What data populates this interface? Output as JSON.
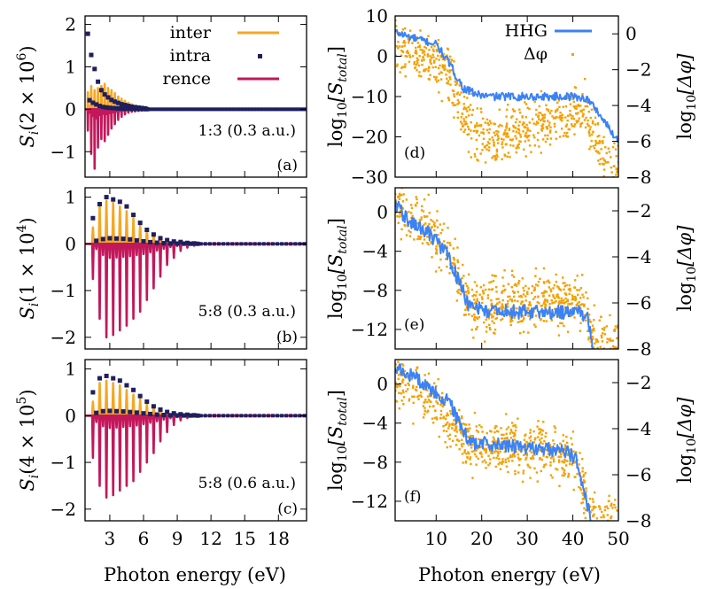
{
  "chart_data": {
    "type": "line",
    "xlabel": "Photon energy (eV)",
    "colors": {
      "inter": "#f5a623",
      "intra": "#1f1f5e",
      "rence": "#c2185b",
      "HHG": "#3b82f6",
      "dphi": "#f5a000"
    },
    "legend_left": [
      "inter",
      "intra",
      "rence"
    ],
    "legend_right": [
      "HHG",
      "Δφ"
    ],
    "left_panels": [
      {
        "panel_label": "(a)",
        "ylabel_main": "S",
        "ylabel_sub": "i",
        "ylabel_scale": "(2 × 10",
        "ylabel_exp": "6",
        "ylabel_close": ")",
        "annotation": "1:3 (0.3 a.u.)",
        "ylim": [
          -1.6,
          2.2
        ],
        "xlim": [
          0.8,
          20.5
        ],
        "yticks": [
          {
            "v": 2,
            "l": "2"
          },
          {
            "v": 1,
            "l": "1"
          },
          {
            "v": 0,
            "l": "0"
          },
          {
            "v": -1,
            "l": "−1"
          }
        ],
        "peaks": {
          "x": [
            1.05,
            1.35,
            1.65,
            1.95,
            2.25,
            2.55,
            2.85,
            3.15,
            3.45,
            3.75,
            4.05,
            4.35,
            4.65,
            4.95,
            5.25,
            5.55,
            5.85,
            6.15
          ],
          "inter": [
            0.4,
            0.55,
            0.45,
            0.5,
            0.55,
            0.6,
            0.5,
            0.45,
            0.38,
            0.3,
            0.25,
            0.2,
            0.15,
            0.12,
            0.08,
            0.06,
            0.05,
            0.04
          ],
          "intra": [
            1.78,
            1.28,
            0.95,
            0.65,
            0.45,
            0.35,
            0.28,
            0.22,
            0.18,
            0.15,
            0.12,
            0.1,
            0.08,
            0.06,
            0.05,
            0.04,
            0.03,
            0.02
          ],
          "rence": [
            -0.5,
            -1.05,
            -1.4,
            -0.9,
            -0.7,
            -0.75,
            -0.6,
            -0.45,
            -0.35,
            -0.25,
            -0.18,
            -0.12,
            -0.08,
            -0.06,
            -0.05,
            -0.04,
            -0.03,
            -0.02
          ]
        }
      },
      {
        "panel_label": "(b)",
        "ylabel_main": "S",
        "ylabel_sub": "i",
        "ylabel_scale": "(1 × 10",
        "ylabel_exp": "4",
        "ylabel_close": ")",
        "annotation": "5:8 (0.3 a.u.)",
        "ylim": [
          -2.25,
          1.2
        ],
        "xlim": [
          0.8,
          20.5
        ],
        "yticks": [
          {
            "v": 1,
            "l": "1"
          },
          {
            "v": 0,
            "l": "0"
          },
          {
            "v": -1,
            "l": "−1"
          },
          {
            "v": -2,
            "l": "−2"
          }
        ],
        "peaks": {
          "x": [
            1.5,
            2.1,
            2.7,
            3.3,
            3.9,
            4.5,
            5.1,
            5.7,
            6.3,
            6.9,
            7.5,
            8.1,
            8.7,
            9.3,
            9.9,
            10.5
          ],
          "inter": [
            0.35,
            0.8,
            0.92,
            0.88,
            0.8,
            0.7,
            0.55,
            0.42,
            0.32,
            0.22,
            0.15,
            0.1,
            0.07,
            0.05,
            0.03,
            0.02
          ],
          "intra": [
            0.55,
            0.85,
            1.0,
            0.95,
            0.9,
            0.8,
            0.62,
            0.45,
            0.3,
            0.2,
            0.12,
            0.08,
            0.05,
            0.04,
            0.02,
            0.01
          ],
          "rence": [
            -0.75,
            -1.6,
            -2.0,
            -1.95,
            -1.85,
            -1.75,
            -1.6,
            -1.45,
            -1.2,
            -0.95,
            -0.7,
            -0.45,
            -0.3,
            -0.15,
            -0.08,
            -0.04
          ]
        }
      },
      {
        "panel_label": "(c)",
        "ylabel_main": "S",
        "ylabel_sub": "i",
        "ylabel_scale": "(4 × 10",
        "ylabel_exp": "5",
        "ylabel_close": ")",
        "annotation": "5:8 (0.6 a.u.)",
        "ylim": [
          -2.25,
          1.2
        ],
        "xlim": [
          0.8,
          20.5
        ],
        "yticks": [
          {
            "v": 1,
            "l": "1"
          },
          {
            "v": 0,
            "l": "0"
          },
          {
            "v": -1,
            "l": "−1"
          },
          {
            "v": -2,
            "l": "−2"
          }
        ],
        "xticks": [
          {
            "v": 3,
            "l": "3"
          },
          {
            "v": 6,
            "l": "6"
          },
          {
            "v": 9,
            "l": "9"
          },
          {
            "v": 12,
            "l": "12"
          },
          {
            "v": 15,
            "l": "15"
          },
          {
            "v": 18,
            "l": "18"
          }
        ],
        "peaks": {
          "x": [
            1.5,
            2.1,
            2.7,
            3.3,
            3.9,
            4.5,
            5.1,
            5.7,
            6.3,
            6.9,
            7.5,
            8.1,
            8.7,
            9.3,
            9.9,
            10.5
          ],
          "inter": [
            0.3,
            0.7,
            0.75,
            0.7,
            0.65,
            0.55,
            0.45,
            0.35,
            0.25,
            0.18,
            0.12,
            0.08,
            0.05,
            0.03,
            0.02,
            0.01
          ],
          "intra": [
            0.5,
            0.8,
            0.85,
            0.8,
            0.75,
            0.65,
            0.55,
            0.42,
            0.3,
            0.2,
            0.13,
            0.08,
            0.05,
            0.03,
            0.02,
            0.01
          ],
          "rence": [
            -0.9,
            -1.5,
            -1.75,
            -1.7,
            -1.6,
            -1.5,
            -1.4,
            -1.2,
            -1.0,
            -0.8,
            -0.55,
            -0.35,
            -0.2,
            -0.1,
            -0.05,
            -0.02
          ]
        }
      }
    ],
    "right_panels": [
      {
        "panel_label": "(d)",
        "ylim": [
          -30,
          10
        ],
        "ylim_right": [
          -8,
          1
        ],
        "yticks": [
          {
            "v": 10,
            "l": "10"
          },
          {
            "v": 0,
            "l": "0"
          },
          {
            "v": -10,
            "l": "−10"
          },
          {
            "v": -20,
            "l": "−20"
          },
          {
            "v": -30,
            "l": "−30"
          }
        ],
        "yticks_right": [
          {
            "v": 0,
            "l": "0"
          },
          {
            "v": -2,
            "l": "−2"
          },
          {
            "v": -4,
            "l": "−4"
          },
          {
            "v": -6,
            "l": "−6"
          },
          {
            "v": -8,
            "l": "−8"
          }
        ],
        "ylabel": "log",
        "ylabel_sub": "10",
        "ylabel_arg": "[S",
        "ylabel_arg_sub": "total",
        "ylabel_close": "]",
        "ylabel_right": "log",
        "ylabel_right_sub": "10",
        "ylabel_right_arg": "[Δφ]",
        "hhg": {
          "x": [
            1,
            5,
            10,
            13,
            16,
            19,
            22,
            26,
            30,
            35,
            40,
            43,
            45,
            48,
            50
          ],
          "y": [
            6,
            4.5,
            3,
            -2,
            -8,
            -9.5,
            -10,
            -10,
            -10,
            -10,
            -10,
            -10.5,
            -13,
            -18,
            -21
          ]
        },
        "dphi": {
          "x": [
            1,
            5,
            10,
            13,
            16,
            19,
            22,
            26,
            30,
            35,
            40,
            43,
            45,
            48
          ],
          "y": [
            -0.5,
            -1.2,
            -1.5,
            -2.3,
            -4.5,
            -5.6,
            -5.8,
            -5.6,
            -5.2,
            -4.8,
            -4.5,
            -4.3,
            -5.8,
            -7.5
          ]
        }
      },
      {
        "panel_label": "(e)",
        "ylim": [
          -14,
          2.5
        ],
        "ylim_right": [
          -8,
          -1
        ],
        "yticks": [
          {
            "v": 0,
            "l": "0"
          },
          {
            "v": -4,
            "l": "−4"
          },
          {
            "v": -8,
            "l": "−8"
          },
          {
            "v": -12,
            "l": "−12"
          }
        ],
        "yticks_right": [
          {
            "v": -2,
            "l": "−2"
          },
          {
            "v": -4,
            "l": "−4"
          },
          {
            "v": -6,
            "l": "−6"
          },
          {
            "v": -8,
            "l": "−8"
          }
        ],
        "ylabel": "log",
        "ylabel_sub": "10",
        "ylabel_arg": "[S",
        "ylabel_arg_sub": "total",
        "ylabel_close": "]",
        "ylabel_right": "log",
        "ylabel_right_sub": "10",
        "ylabel_right_arg": "[Δφ]",
        "hhg": {
          "x": [
            1,
            4,
            8,
            12,
            15,
            17,
            20,
            25,
            30,
            35,
            40,
            43,
            44.5
          ],
          "y": [
            1,
            -1,
            -2,
            -4,
            -7,
            -9.5,
            -10,
            -10.2,
            -10.2,
            -10.2,
            -10.2,
            -10.5,
            -14
          ]
        },
        "dphi": {
          "x": [
            1,
            4,
            8,
            12,
            15,
            17,
            20,
            25,
            30,
            35,
            40,
            43,
            45
          ],
          "y": [
            -1.5,
            -2.3,
            -2.8,
            -3.6,
            -5,
            -6,
            -6.1,
            -6,
            -5.9,
            -5.9,
            -5.9,
            -6.2,
            -7.8
          ]
        }
      },
      {
        "panel_label": "(f)",
        "ylim": [
          -14,
          2.5
        ],
        "ylim_right": [
          -8,
          -1
        ],
        "yticks": [
          {
            "v": 0,
            "l": "0"
          },
          {
            "v": -4,
            "l": "−4"
          },
          {
            "v": -8,
            "l": "−8"
          },
          {
            "v": -12,
            "l": "−12"
          }
        ],
        "yticks_right": [
          {
            "v": -2,
            "l": "−2"
          },
          {
            "v": -4,
            "l": "−4"
          },
          {
            "v": -6,
            "l": "−6"
          },
          {
            "v": -8,
            "l": "−8"
          }
        ],
        "xticks": [
          {
            "v": 10,
            "l": "10"
          },
          {
            "v": 20,
            "l": "20"
          },
          {
            "v": 30,
            "l": "30"
          },
          {
            "v": 40,
            "l": "40"
          },
          {
            "v": 50,
            "l": "50"
          }
        ],
        "ylabel": "log",
        "ylabel_sub": "10",
        "ylabel_arg": "[S",
        "ylabel_arg_sub": "total",
        "ylabel_close": "]",
        "ylabel_right": "log",
        "ylabel_right_sub": "10",
        "ylabel_right_arg": "[Δφ]",
        "hhg": {
          "x": [
            1,
            5,
            10,
            13,
            16,
            18,
            22,
            30,
            35,
            39,
            41,
            42.5,
            44
          ],
          "y": [
            1.5,
            0.8,
            -1,
            -2,
            -5,
            -6,
            -6.2,
            -6.5,
            -6.7,
            -7,
            -8,
            -11,
            -14
          ]
        },
        "dphi": {
          "x": [
            1,
            5,
            10,
            13,
            16,
            18,
            22,
            30,
            35,
            39,
            41,
            43,
            45
          ],
          "y": [
            -1.7,
            -2.2,
            -3.0,
            -3.8,
            -4.5,
            -4.7,
            -4.8,
            -4.9,
            -5.0,
            -5.2,
            -5.8,
            -7,
            -8
          ]
        }
      }
    ],
    "right_xlim": [
      1,
      50
    ]
  }
}
